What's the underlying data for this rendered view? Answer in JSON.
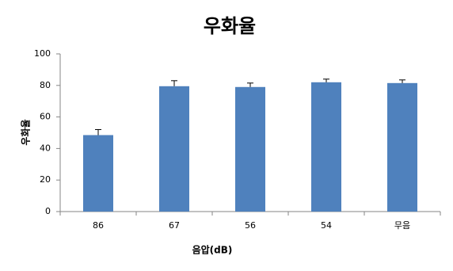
{
  "chart_data": {
    "type": "bar",
    "title": "우화율",
    "y_label": "우화율",
    "x_label": "음압(dB)",
    "categories": [
      "86",
      "67",
      "56",
      "54",
      "무음"
    ],
    "values": [
      48.5,
      79.5,
      79,
      82,
      81.5
    ],
    "errors": [
      3.5,
      3.5,
      2.5,
      2,
      2
    ],
    "color": "#4f81bd",
    "ylim": [
      0,
      100
    ],
    "yticks": [
      0,
      20,
      40,
      60,
      80,
      100
    ],
    "grid": false
  }
}
